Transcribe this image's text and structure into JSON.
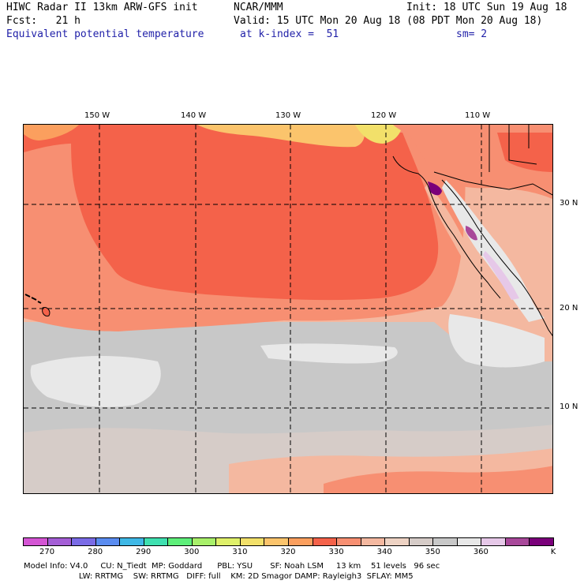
{
  "header": {
    "line1_left": "HIWC Radar II 13km ARW-GFS init",
    "line1_mid": "NCAR/MMM",
    "line1_right": "Init: 18 UTC Sun 19 Aug 18",
    "line2_left": "Fcst:   21 h",
    "line2_right": "Valid: 15 UTC Mon 20 Aug 18 (08 PDT Mon 20 Aug 18)",
    "line3_field": "Equivalent potential temperature",
    "line3_level": "at k-index =  51",
    "line3_smooth": "sm= 2"
  },
  "map": {
    "lon_labels": [
      "150 W",
      "140 W",
      "130 W",
      "120 W",
      "110 W"
    ],
    "lat_labels": [
      "30 N",
      "20 N",
      "10 N"
    ]
  },
  "colorbar": {
    "unit": "K",
    "tick_labels": [
      "270",
      "280",
      "290",
      "300",
      "310",
      "320",
      "330",
      "340",
      "350",
      "360"
    ],
    "colors": [
      "#d455d4",
      "#a45ed6",
      "#7a6be6",
      "#5a8cf0",
      "#3fb8e6",
      "#3fe0b0",
      "#5eef7a",
      "#a8f06a",
      "#dff06a",
      "#f2e06a",
      "#fbc46c",
      "#fb9f5e",
      "#f4624a",
      "#f78f72",
      "#f4b8a0",
      "#eed3c4",
      "#d6ccc8",
      "#c8c8c8",
      "#e8e8e8",
      "#e6c8e8",
      "#a8489a",
      "#7a007a"
    ]
  },
  "footer": {
    "line1": "Model Info: V4.0     CU: N_Tiedt  MP: Goddard      PBL: YSU       SF: Noah LSM     13 km    51 levels   96 sec",
    "line2": "                      LW: RRTMG    SW: RRTMG   DIFF: full    KM: 2D Smagor DAMP: Rayleigh3  SFLAY: MM5"
  }
}
